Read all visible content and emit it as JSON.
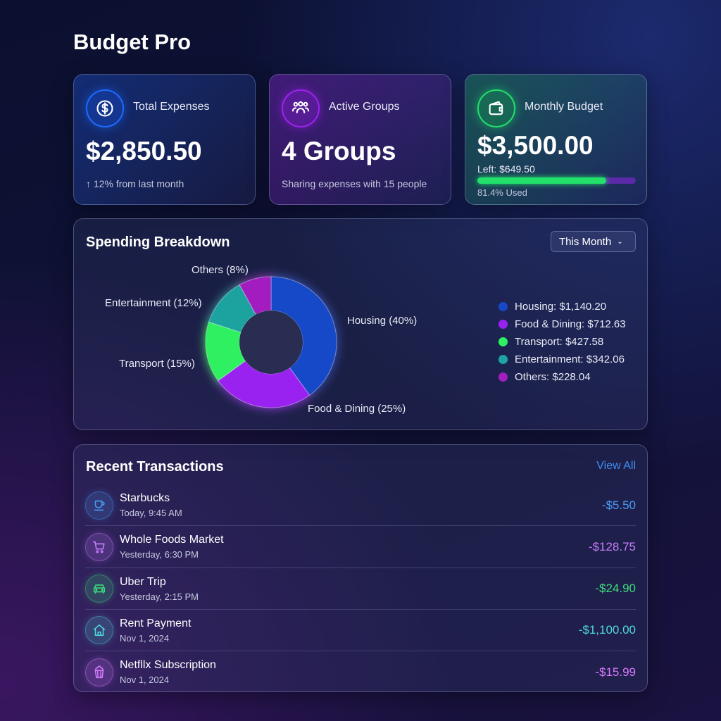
{
  "app_title": "Budget Pro",
  "stats": [
    {
      "label": "Total Expenses",
      "value": "$2,850.50",
      "sub": "↑ 12% from last month",
      "icon": "dollar-circle-icon",
      "color": "#1e6bff"
    },
    {
      "label": "Active Groups",
      "value": "4 Groups",
      "sub": "Sharing expenses with 15 people",
      "icon": "users-icon",
      "color": "#a020f0"
    },
    {
      "label": "Monthly Budget",
      "value": "$3,500.00",
      "left": "Left: $649.50",
      "used_label": "81.4% Used",
      "used_pct": 81.4,
      "icon": "wallet-icon",
      "color": "#22e06a"
    }
  ],
  "breakdown": {
    "title": "Spending Breakdown",
    "period": "This Month",
    "chart_data": {
      "type": "pie",
      "donut": true,
      "categories": [
        "Housing",
        "Food & Dining",
        "Transport",
        "Entertainment",
        "Others"
      ],
      "percent": [
        40,
        25,
        15,
        12,
        8
      ],
      "amounts": [
        1140.2,
        712.63,
        427.58,
        342.06,
        228.04
      ],
      "colors": [
        "#1848c8",
        "#9a22f0",
        "#2ef060",
        "#1fa3a0",
        "#a31fc0"
      ],
      "slice_labels": [
        "Housing (40%)",
        "Food & Dining (25%)",
        "Transport (15%)",
        "Entertainment (12%)",
        "Others (8%)"
      ],
      "legend": [
        "Housing: $1,140.20",
        "Food & Dining: $712.63",
        "Transport: $427.58",
        "Entertainment: $342.06",
        "Others: $228.04"
      ],
      "legend_position": "right"
    }
  },
  "transactions": {
    "title": "Recent Transactions",
    "view_all": "View All",
    "items": [
      {
        "name": "Starbucks",
        "time": "Today, 9:45 AM",
        "amount": "-$5.50",
        "icon": "coffee-icon",
        "color": "#4a9cf5"
      },
      {
        "name": "Whole Foods Market",
        "time": "Yesterday, 6:30 PM",
        "amount": "-$128.75",
        "icon": "cart-icon",
        "color": "#c77dff"
      },
      {
        "name": "Uber Trip",
        "time": "Yesterday, 2:15 PM",
        "amount": "-$24.90",
        "icon": "car-icon",
        "color": "#3ddc7a"
      },
      {
        "name": "Rent Payment",
        "time": "Nov 1, 2024",
        "amount": "-$1,100.00",
        "icon": "home-icon",
        "color": "#4fd8d8"
      },
      {
        "name": "Netfllx Subscription",
        "time": "Nov 1, 2024",
        "amount": "-$15.99",
        "icon": "popcorn-icon",
        "color": "#d77aff"
      }
    ]
  }
}
